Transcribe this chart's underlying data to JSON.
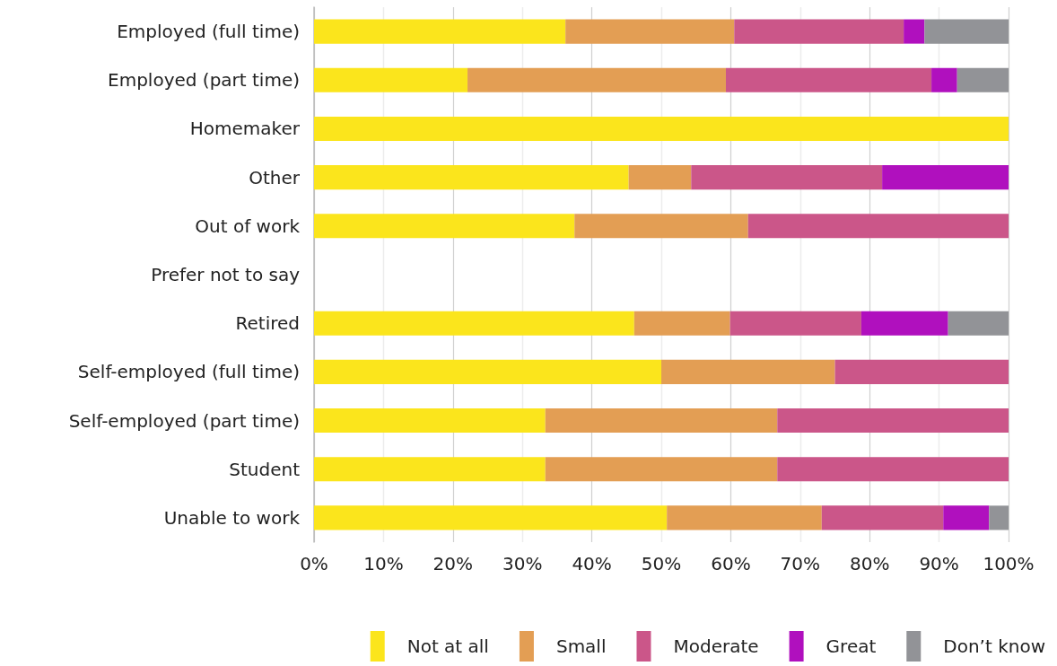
{
  "chart_data": {
    "type": "bar",
    "orientation": "horizontal",
    "stacked": true,
    "categories": [
      "Employed (full time)",
      "Employed (part time)",
      "Homemaker",
      "Other",
      "Out of work",
      "Prefer not to say",
      "Retired",
      "Self-employed (full time)",
      "Self-employed (part time)",
      "Student",
      "Unable to work"
    ],
    "series": [
      {
        "name": "Not at all",
        "color": "#fbe51c",
        "values": [
          36.2,
          22.1,
          100,
          45.3,
          37.5,
          null,
          46.1,
          50,
          33.3,
          33.3,
          50.8
        ]
      },
      {
        "name": "Small",
        "color": "#e39e54",
        "values": [
          24.3,
          37.2,
          null,
          9.0,
          25,
          null,
          13.8,
          25,
          33.4,
          33.4,
          22.3
        ]
      },
      {
        "name": "Moderate",
        "color": "#cb5689",
        "values": [
          24.4,
          29.6,
          null,
          27.5,
          37.5,
          null,
          18.9,
          25,
          33.3,
          33.3,
          17.5
        ]
      },
      {
        "name": "Great",
        "color": "#b010be",
        "values": [
          3.0,
          3.7,
          null,
          18.2,
          null,
          null,
          12.5,
          null,
          null,
          null,
          6.6
        ]
      },
      {
        "name": "Don’t know",
        "color": "#929397",
        "values": [
          12.1,
          7.4,
          null,
          null,
          null,
          null,
          8.7,
          null,
          null,
          null,
          2.8
        ]
      }
    ],
    "xlim": [
      0,
      100
    ],
    "xticks": [
      {
        "value": 0,
        "label": "0%"
      },
      {
        "value": 10,
        "label": "10%"
      },
      {
        "value": 20,
        "label": "20%"
      },
      {
        "value": 30,
        "label": "30%"
      },
      {
        "value": 40,
        "label": "40%"
      },
      {
        "value": 50,
        "label": "50%"
      },
      {
        "value": 60,
        "label": "60%"
      },
      {
        "value": 70,
        "label": "70%"
      },
      {
        "value": 80,
        "label": "80%"
      },
      {
        "value": 90,
        "label": "90%"
      },
      {
        "value": 100,
        "label": "100%"
      }
    ],
    "grid": "x",
    "legend": "bottom"
  }
}
